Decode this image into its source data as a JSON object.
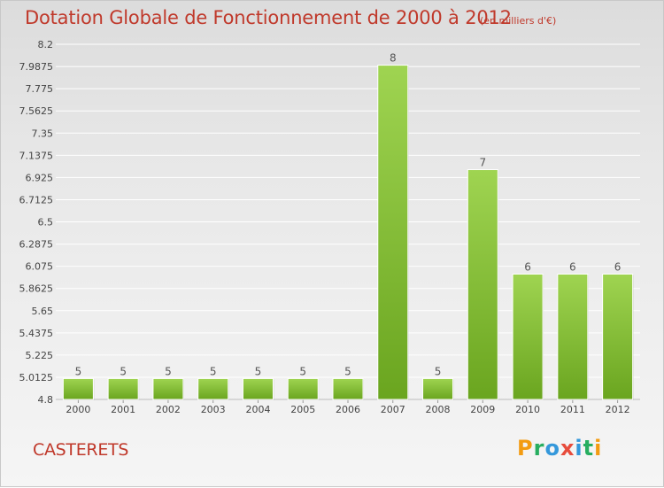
{
  "chart_data": {
    "type": "bar",
    "title": "Dotation Globale de Fonctionnement de 2000 à 2012",
    "unit": "(en milliers d'€)",
    "categories": [
      "2000",
      "2001",
      "2002",
      "2003",
      "2004",
      "2005",
      "2006",
      "2007",
      "2008",
      "2009",
      "2010",
      "2011",
      "2012"
    ],
    "values": [
      5,
      5,
      5,
      5,
      5,
      5,
      5,
      8,
      5,
      7,
      6,
      6,
      6
    ],
    "value_labels": [
      "5",
      "5",
      "5",
      "5",
      "5",
      "5",
      "5",
      "8",
      "5",
      "7",
      "6",
      "6",
      "6"
    ],
    "bar_tops": [
      5.0,
      5.0,
      5.0,
      5.0,
      5.0,
      5.0,
      5.0,
      8.0,
      5.0,
      7.0,
      6.0,
      6.0,
      6.0
    ],
    "ylim": [
      4.8,
      8.2
    ],
    "yticks": [
      "4.8",
      "5.0125",
      "5.225",
      "5.4375",
      "5.65",
      "5.8625",
      "6.075",
      "6.2875",
      "6.5",
      "6.7125",
      "6.925",
      "7.1375",
      "7.35",
      "7.5625",
      "7.775",
      "7.9875",
      "8.2"
    ],
    "ytick_values": [
      4.8,
      5.0125,
      5.225,
      5.4375,
      5.65,
      5.8625,
      6.075,
      6.2875,
      6.5,
      6.7125,
      6.925,
      7.1375,
      7.35,
      7.5625,
      7.775,
      7.9875,
      8.2
    ],
    "grid": true,
    "bar_color": "#8cc63f",
    "bar_color_dark": "#5e9a1a"
  },
  "footer": {
    "commune": "CASTERETS",
    "logo": [
      "P",
      "r",
      "o",
      "x",
      "i",
      "t",
      "i"
    ],
    "logo_colors": [
      "#f39c12",
      "#27ae60",
      "#3498db",
      "#e74c3c",
      "#3498db",
      "#27ae60",
      "#f39c12"
    ]
  }
}
